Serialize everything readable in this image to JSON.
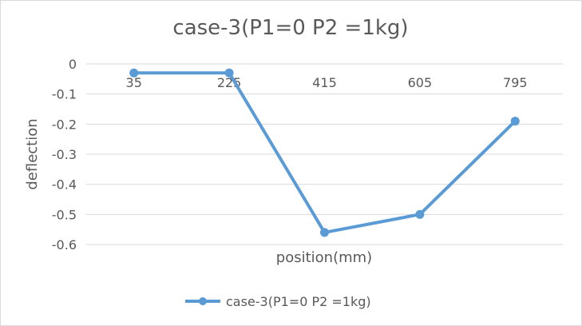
{
  "chart_data": {
    "type": "line",
    "title": "case-3(P1=0 P2 =1kg)",
    "xlabel": "position(mm)",
    "ylabel": "deflection",
    "categories": [
      "35",
      "225",
      "415",
      "605",
      "795"
    ],
    "series": [
      {
        "name": "case-3(P1=0 P2 =1kg)",
        "values": [
          -0.03,
          -0.03,
          -0.56,
          -0.5,
          -0.19
        ],
        "color": "#5b9bd5"
      }
    ],
    "ylim": [
      -0.6,
      0
    ],
    "yticks": [
      "0",
      "-0.1",
      "-0.2",
      "-0.3",
      "-0.4",
      "-0.5",
      "-0.6"
    ],
    "grid": true,
    "legend": "bottom",
    "gridColor": "#d9d9d9"
  }
}
